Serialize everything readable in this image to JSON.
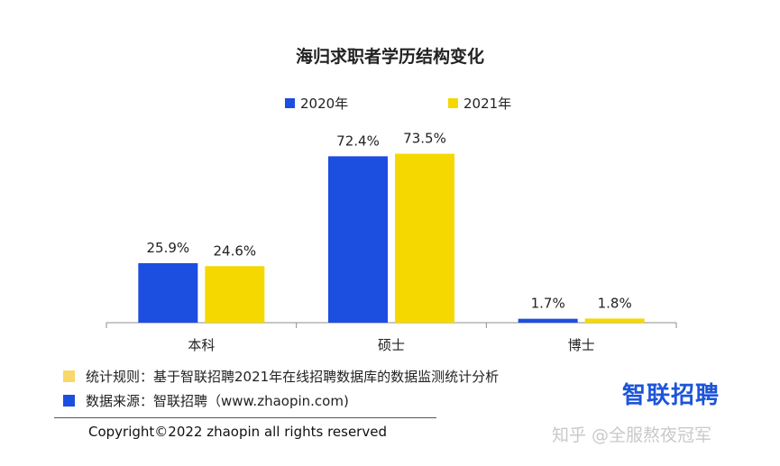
{
  "chart_data": {
    "type": "bar",
    "title": "海归求职者学历结构变化",
    "categories": [
      "本科",
      "硕士",
      "博士"
    ],
    "series": [
      {
        "name": "2020年",
        "color": "#1c4ee0",
        "values": [
          25.9,
          72.4,
          1.7
        ],
        "labels": [
          "25.9%",
          "72.4%",
          "1.7%"
        ]
      },
      {
        "name": "2021年",
        "color": "#f5d800",
        "values": [
          24.6,
          73.5,
          1.8
        ],
        "labels": [
          "24.6%",
          "73.5%",
          "1.8%"
        ]
      }
    ],
    "xlabel": "",
    "ylabel": "",
    "ylim": [
      0,
      80
    ],
    "grid": false,
    "legend_position": "top-center"
  },
  "notes": {
    "rule": {
      "text": "统计规则：基于智联招聘2021年在线招聘数据库的数据监测统计分析",
      "color": "#f7d86a"
    },
    "source": {
      "text": "数据来源：智联招聘（www.zhaopin.com)",
      "color": "#1c4ee0"
    }
  },
  "footer": {
    "copyright": "Copyright©2022 zhaopin all rights reserved"
  },
  "brand": {
    "logo_text": "智联招聘"
  },
  "watermark": {
    "text": "知乎 @全服熬夜冠军"
  }
}
